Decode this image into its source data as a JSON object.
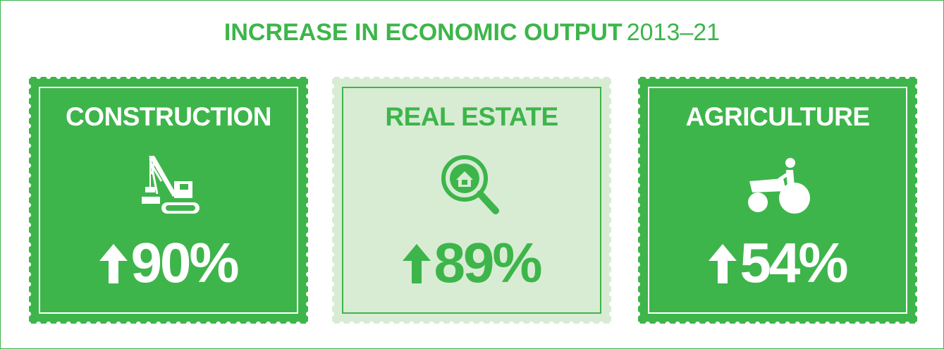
{
  "title": {
    "main": "INCREASE IN ECONOMIC OUTPUT",
    "years": "2013–21"
  },
  "cards": [
    {
      "label": "CONSTRUCTION",
      "value": "90%"
    },
    {
      "label": "REAL ESTATE",
      "value": "89%"
    },
    {
      "label": "AGRICULTURE",
      "value": "54%"
    }
  ]
}
